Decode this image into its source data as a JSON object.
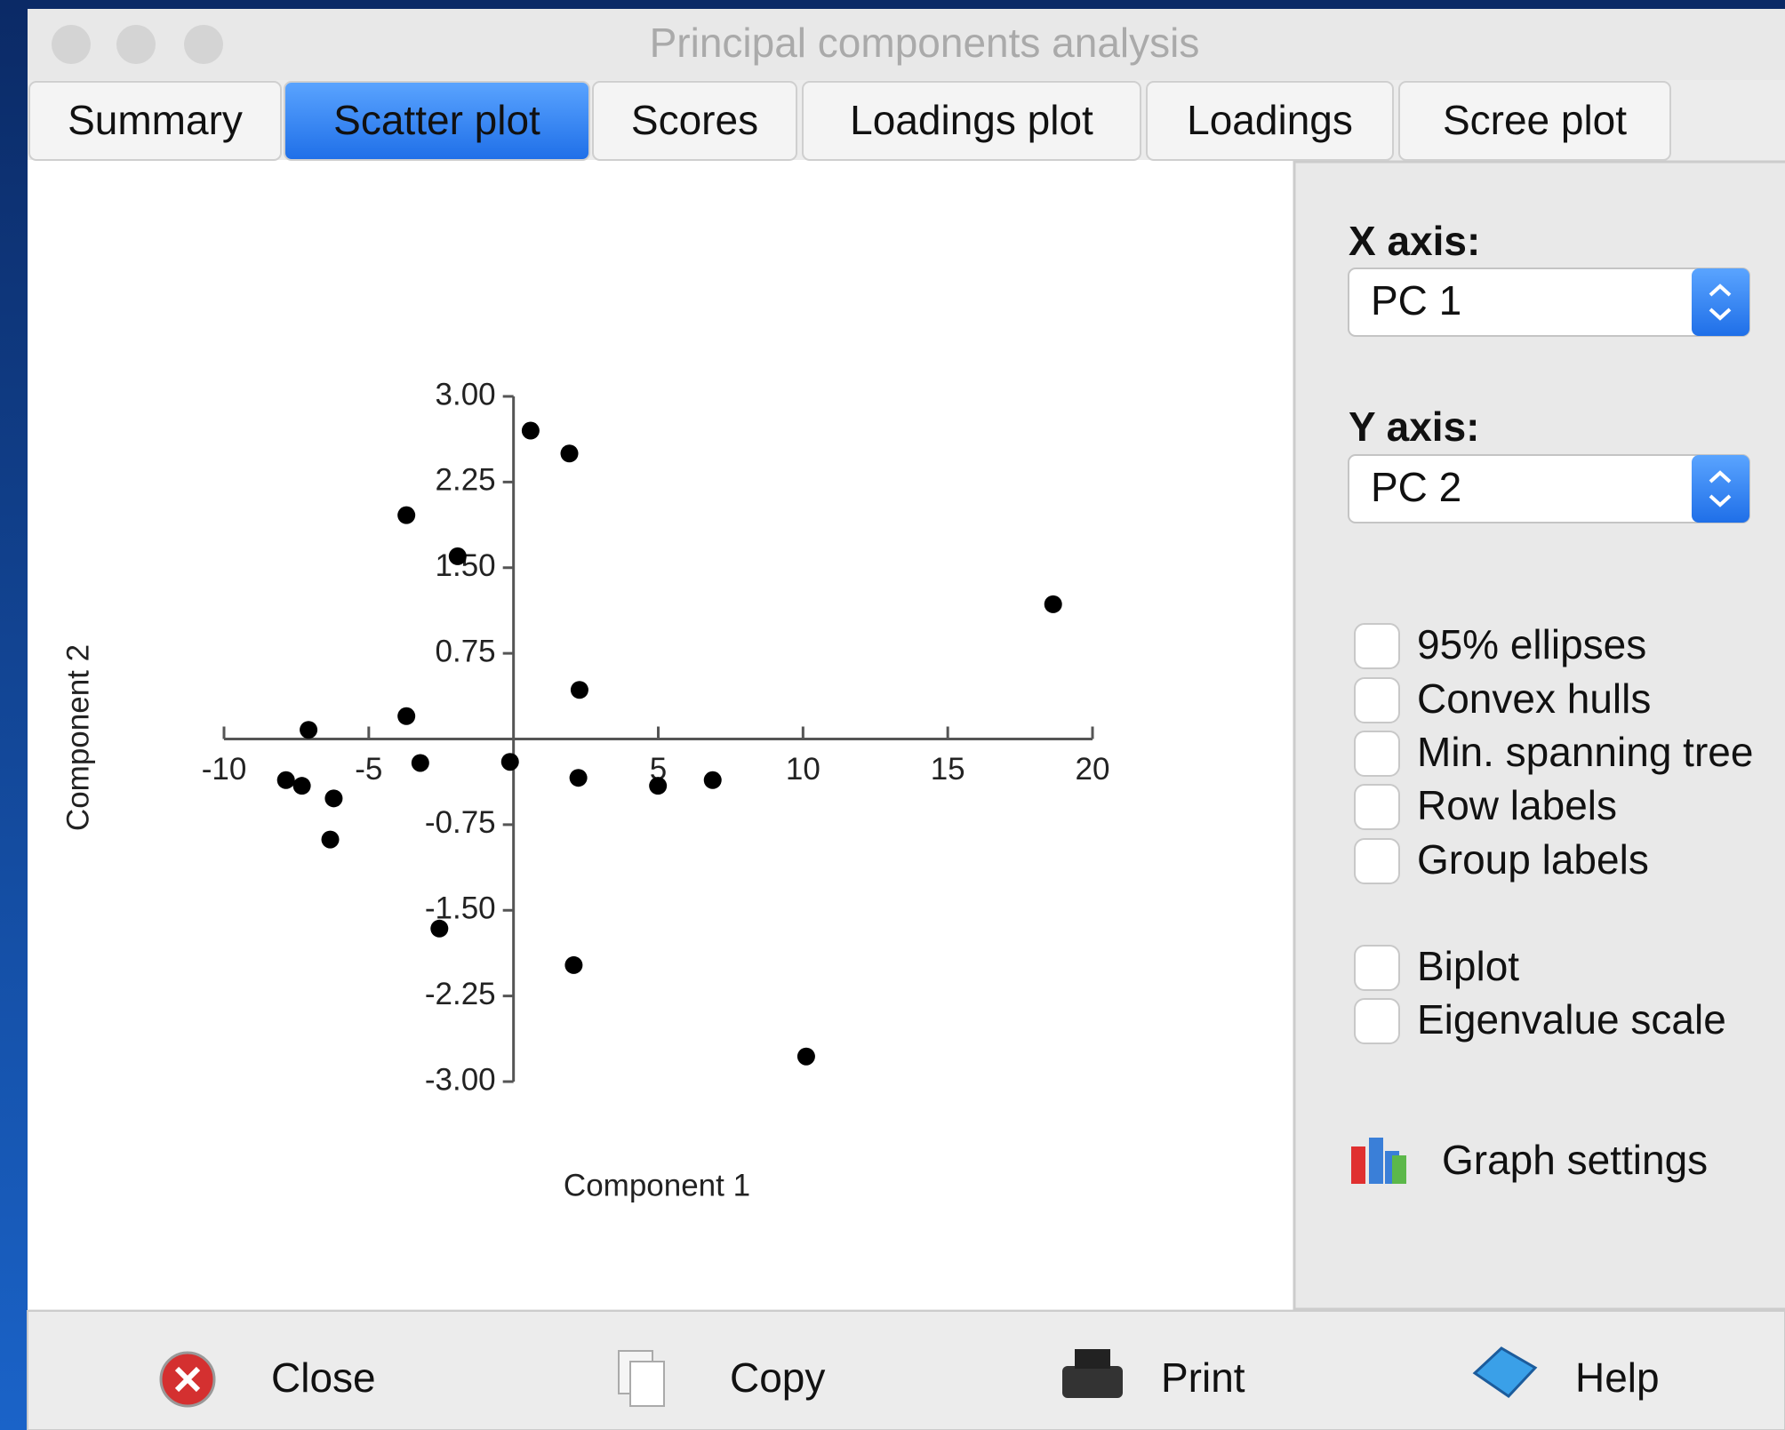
{
  "window": {
    "title": "Principal components analysis"
  },
  "tabs": [
    {
      "label": "Summary",
      "selected": false
    },
    {
      "label": "Scatter plot",
      "selected": true
    },
    {
      "label": "Scores",
      "selected": false
    },
    {
      "label": "Loadings plot",
      "selected": false
    },
    {
      "label": "Loadings",
      "selected": false
    },
    {
      "label": "Scree plot",
      "selected": false
    }
  ],
  "chart_data": {
    "type": "scatter",
    "xlabel": "Component 1",
    "ylabel": "Component 2",
    "color": "#000000",
    "xlim": [
      -10,
      20
    ],
    "ylim": [
      -3,
      3
    ],
    "xticks": [
      -10,
      -5,
      5,
      10,
      15,
      20
    ],
    "yticks": [
      {
        "value": 3,
        "label": "3.00"
      },
      2.25,
      {
        "value": 1.5,
        "label": "1.50"
      },
      0.75,
      -0.75,
      {
        "value": -1.5,
        "label": "-1.50"
      },
      -2.25,
      {
        "value": -3,
        "label": "-3.00"
      }
    ],
    "x": [
      0.59,
      1.93,
      -3.7,
      -1.93,
      18.64,
      2.28,
      -3.7,
      -7.08,
      -3.22,
      -0.12,
      2.24,
      4.99,
      6.88,
      -7.86,
      -7.31,
      -6.21,
      -6.33,
      -2.56,
      2.08,
      10.11
    ],
    "y": [
      2.7,
      2.5,
      1.96,
      1.6,
      1.18,
      0.43,
      0.2,
      0.08,
      -0.21,
      -0.2,
      -0.34,
      -0.41,
      -0.36,
      -0.36,
      -0.41,
      -0.52,
      -0.88,
      -1.66,
      -1.98,
      -2.78
    ]
  },
  "panel": {
    "x_axis": {
      "label": "X axis:",
      "value": "PC 1"
    },
    "y_axis": {
      "label": "Y axis:",
      "value": "PC 2"
    },
    "options": [
      {
        "label": "95% ellipses",
        "checked": false
      },
      {
        "label": "Convex hulls",
        "checked": false
      },
      {
        "label": "Min. spanning tree",
        "checked": false
      },
      {
        "label": "Row labels",
        "checked": false
      },
      {
        "label": "Group labels",
        "checked": false
      },
      {
        "label": "Biplot",
        "checked": false
      },
      {
        "label": "Eigenvalue scale",
        "checked": false
      }
    ],
    "graph_settings": "Graph settings"
  },
  "buttons": [
    "Close",
    "Copy",
    "Print",
    "Help"
  ]
}
